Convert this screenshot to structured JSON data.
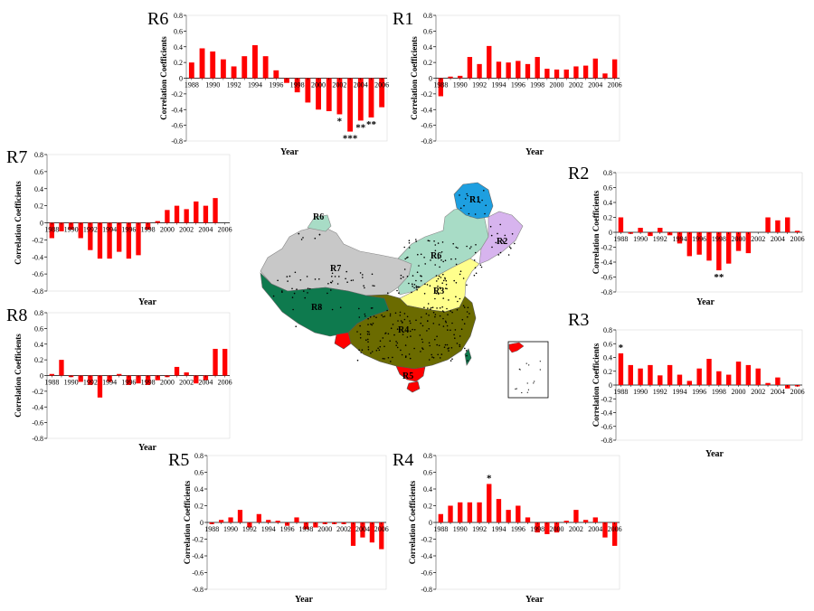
{
  "colors": {
    "bar": "#ff0000",
    "axis": "#000000",
    "grid": "#bfbfbf",
    "region_r1": "#1e9fe0",
    "region_r2": "#d7b4ee",
    "region_r3": "#ffff8c",
    "region_r4": "#6b6b00",
    "region_r5": "#ff0000",
    "region_r6": "#a8dcc6",
    "region_r7": "#c8c8c8",
    "region_r8": "#0e7a4e",
    "station": "#000000"
  },
  "map": {
    "region_labels": [
      "R1",
      "R2",
      "R3",
      "R4",
      "R5",
      "R6",
      "R7",
      "R8",
      "R6"
    ]
  },
  "chart_data": [
    {
      "type": "bar",
      "title": "R6",
      "xlabel": "Year",
      "ylabel": "Correlation Coefficients",
      "ylim": [
        -0.8,
        0.8
      ],
      "yticks": [
        "0.8",
        "0.6",
        "0.4",
        "0.2",
        "0",
        "-0.2",
        "-0.4",
        "-0.6",
        "-0.8"
      ],
      "categories": [
        "1988",
        "1989",
        "1990",
        "1991",
        "1992",
        "1993",
        "1994",
        "1995",
        "1996",
        "1997",
        "1998",
        "1999",
        "2000",
        "2001",
        "2002",
        "2003",
        "2004",
        "2005",
        "2006"
      ],
      "xtick_labels": [
        "1988",
        "1990",
        "1992",
        "1994",
        "1996",
        "1998",
        "2000",
        "2002",
        "2004",
        "2006"
      ],
      "values": [
        0.2,
        0.38,
        0.34,
        0.24,
        0.15,
        0.28,
        0.42,
        0.28,
        0.1,
        -0.06,
        -0.18,
        -0.31,
        -0.4,
        -0.42,
        -0.46,
        -0.68,
        -0.54,
        -0.5,
        -0.37
      ],
      "annotations": [
        {
          "x": "2002",
          "label": "*"
        },
        {
          "x": "2003",
          "label": "***"
        },
        {
          "x": "2004",
          "label": "**"
        },
        {
          "x": "2005",
          "label": "**"
        }
      ]
    },
    {
      "type": "bar",
      "title": "R1",
      "xlabel": "Year",
      "ylabel": "Correlation Coefficients",
      "ylim": [
        -0.8,
        0.8
      ],
      "yticks": [
        "0.8",
        "0.6",
        "0.4",
        "0.2",
        "0",
        "-0.2",
        "-0.4",
        "-0.6",
        "-0.8"
      ],
      "categories": [
        "1988",
        "1989",
        "1990",
        "1991",
        "1992",
        "1993",
        "1994",
        "1995",
        "1996",
        "1997",
        "1998",
        "1999",
        "2000",
        "2001",
        "2002",
        "2003",
        "2004",
        "2005",
        "2006"
      ],
      "xtick_labels": [
        "1988",
        "1990",
        "1992",
        "1994",
        "1996",
        "1998",
        "2000",
        "2002",
        "2004",
        "2006"
      ],
      "values": [
        -0.23,
        0.02,
        0.03,
        0.27,
        0.18,
        0.41,
        0.21,
        0.2,
        0.22,
        0.18,
        0.27,
        0.12,
        0.11,
        0.11,
        0.15,
        0.16,
        0.25,
        0.06,
        0.24
      ],
      "annotations": []
    },
    {
      "type": "bar",
      "title": "R7",
      "xlabel": "Year",
      "ylabel": "Correlation Coefficients",
      "ylim": [
        -0.8,
        0.8
      ],
      "yticks": [
        "0.8",
        "0.6",
        "0.4",
        "0.2",
        "0",
        "-0.2",
        "-0.4",
        "-0.6",
        "-0.8"
      ],
      "categories": [
        "1988",
        "1989",
        "1990",
        "1991",
        "1992",
        "1993",
        "1994",
        "1995",
        "1996",
        "1997",
        "1998",
        "1999",
        "2000",
        "2001",
        "2002",
        "2003",
        "2004",
        "2005",
        "2006"
      ],
      "xtick_labels": [
        "1988",
        "1990",
        "1992",
        "1994",
        "1996",
        "1998",
        "2000",
        "2002",
        "2004",
        "2006"
      ],
      "values": [
        -0.18,
        -0.1,
        -0.08,
        -0.18,
        -0.32,
        -0.42,
        -0.42,
        -0.34,
        -0.42,
        -0.38,
        -0.08,
        0.02,
        0.15,
        0.2,
        0.16,
        0.25,
        0.2,
        0.29,
        0.0
      ],
      "annotations": []
    },
    {
      "type": "bar",
      "title": "R2",
      "xlabel": "Year",
      "ylabel": "Correlation Coefficients",
      "ylim": [
        -0.8,
        0.8
      ],
      "yticks": [
        "0.8",
        "0.6",
        "0.4",
        "0.2",
        "0",
        "-0.2",
        "-0.4",
        "-0.6",
        "-0.8"
      ],
      "categories": [
        "1988",
        "1989",
        "1990",
        "1991",
        "1992",
        "1993",
        "1994",
        "1995",
        "1996",
        "1997",
        "1998",
        "1999",
        "2000",
        "2001",
        "2002",
        "2003",
        "2004",
        "2005",
        "2006"
      ],
      "xtick_labels": [
        "1988",
        "1990",
        "1992",
        "1994",
        "1996",
        "1998",
        "2000",
        "2002",
        "2004",
        "2006"
      ],
      "values": [
        0.2,
        -0.02,
        0.06,
        -0.05,
        0.06,
        -0.04,
        -0.15,
        -0.32,
        -0.3,
        -0.38,
        -0.51,
        -0.42,
        -0.25,
        -0.28,
        0.0,
        0.2,
        0.16,
        0.2,
        0.02
      ],
      "annotations": [
        {
          "x": "1998",
          "label": "**"
        }
      ]
    },
    {
      "type": "bar",
      "title": "R8",
      "xlabel": "Year",
      "ylabel": "Correlation Coefficients",
      "ylim": [
        -0.8,
        0.8
      ],
      "yticks": [
        "0.8",
        "0.6",
        "0.4",
        "0.2",
        "0",
        "-0.2",
        "-0.4",
        "-0.6",
        "-0.8"
      ],
      "categories": [
        "1988",
        "1989",
        "1990",
        "1991",
        "1992",
        "1993",
        "1994",
        "1995",
        "1996",
        "1997",
        "1998",
        "1999",
        "2000",
        "2001",
        "2002",
        "2003",
        "2004",
        "2005",
        "2006"
      ],
      "xtick_labels": [
        "1988",
        "1990",
        "1992",
        "1994",
        "1996",
        "1998",
        "2000",
        "2002",
        "2004",
        "2006"
      ],
      "values": [
        0.02,
        0.2,
        -0.02,
        -0.08,
        -0.12,
        -0.28,
        -0.08,
        0.02,
        -0.12,
        -0.1,
        -0.12,
        -0.06,
        -0.02,
        0.11,
        0.04,
        -0.1,
        -0.06,
        0.34,
        0.34
      ],
      "annotations": []
    },
    {
      "type": "bar",
      "title": "R3",
      "xlabel": "Year",
      "ylabel": "Correlation Coefficients",
      "ylim": [
        -0.8,
        0.8
      ],
      "yticks": [
        "0.8",
        "0.6",
        "0.4",
        "0.2",
        "0",
        "-0.2",
        "-0.4",
        "-0.6",
        "-0.8"
      ],
      "categories": [
        "1988",
        "1989",
        "1990",
        "1991",
        "1992",
        "1993",
        "1994",
        "1995",
        "1996",
        "1997",
        "1998",
        "1999",
        "2000",
        "2001",
        "2002",
        "2003",
        "2004",
        "2005",
        "2006"
      ],
      "xtick_labels": [
        "1988",
        "1990",
        "1992",
        "1994",
        "1996",
        "1998",
        "2000",
        "2002",
        "2004",
        "2006"
      ],
      "values": [
        0.46,
        0.29,
        0.24,
        0.29,
        0.14,
        0.29,
        0.15,
        0.06,
        0.24,
        0.38,
        0.2,
        0.15,
        0.34,
        0.29,
        0.24,
        0.03,
        0.11,
        -0.05,
        -0.02
      ],
      "annotations": [
        {
          "x": "1988",
          "label": "*"
        }
      ]
    },
    {
      "type": "bar",
      "title": "R5",
      "xlabel": "Year",
      "ylabel": "Correlation Coefficients",
      "ylim": [
        -0.8,
        0.8
      ],
      "yticks": [
        "0.8",
        "0.6",
        "0.4",
        "0.2",
        "0",
        "-0.2",
        "-0.4",
        "-0.6",
        "-0.8"
      ],
      "categories": [
        "1988",
        "1989",
        "1990",
        "1991",
        "1992",
        "1993",
        "1994",
        "1995",
        "1996",
        "1997",
        "1998",
        "1999",
        "2000",
        "2001",
        "2002",
        "2003",
        "2004",
        "2005",
        "2006"
      ],
      "xtick_labels": [
        "1988",
        "1990",
        "1992",
        "1994",
        "1996",
        "1998",
        "2000",
        "2002",
        "2004",
        "2006"
      ],
      "values": [
        -0.02,
        0.03,
        0.06,
        0.15,
        -0.06,
        0.1,
        0.03,
        0.02,
        -0.04,
        0.06,
        -0.08,
        -0.06,
        -0.02,
        -0.02,
        -0.02,
        -0.28,
        -0.18,
        -0.24,
        -0.32
      ],
      "annotations": []
    },
    {
      "type": "bar",
      "title": "R4",
      "xlabel": "Year",
      "ylabel": "Correlation Coefficients",
      "ylim": [
        -0.8,
        0.8
      ],
      "yticks": [
        "0.8",
        "0.6",
        "0.4",
        "0.2",
        "0",
        "-0.2",
        "-0.4",
        "-0.6",
        "-0.8"
      ],
      "categories": [
        "1988",
        "1989",
        "1990",
        "1991",
        "1992",
        "1993",
        "1994",
        "1995",
        "1996",
        "1997",
        "1998",
        "1999",
        "2000",
        "2001",
        "2002",
        "2003",
        "2004",
        "2005",
        "2006"
      ],
      "xtick_labels": [
        "1988",
        "1990",
        "1992",
        "1994",
        "1996",
        "1998",
        "2000",
        "2002",
        "2004",
        "2006"
      ],
      "values": [
        0.1,
        0.2,
        0.24,
        0.24,
        0.24,
        0.46,
        0.28,
        0.15,
        0.2,
        0.06,
        -0.12,
        -0.14,
        -0.12,
        0.02,
        0.15,
        0.03,
        0.06,
        -0.18,
        -0.28
      ],
      "annotations": [
        {
          "x": "1993",
          "label": "*"
        }
      ]
    }
  ]
}
